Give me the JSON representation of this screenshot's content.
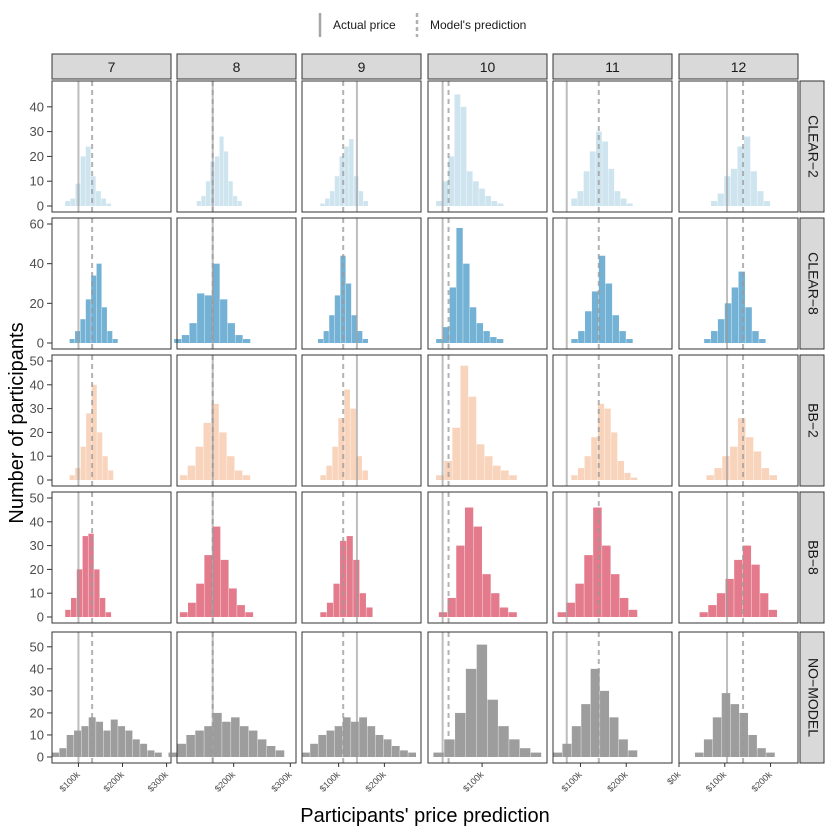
{
  "legend": {
    "actual_label": "Actual price",
    "model_label": "Model's prediction"
  },
  "chart_data": {
    "type": "histogram-facet",
    "xlabel": "Participants' price prediction",
    "ylabel": "Number of participants",
    "columns": [
      "7",
      "8",
      "9",
      "10",
      "11",
      "12"
    ],
    "rows": [
      {
        "name": "CLEAR−2",
        "color": "#c6dfec",
        "yticks": [
          0,
          10,
          20,
          30,
          40
        ],
        "ymax": 48
      },
      {
        "name": "CLEAR−8",
        "color": "#5aa3ce",
        "yticks": [
          0,
          20,
          40,
          60
        ],
        "ymax": 60
      },
      {
        "name": "BB−2",
        "color": "#f8cdb2",
        "yticks": [
          0,
          10,
          20,
          30,
          40,
          50
        ],
        "ymax": 50
      },
      {
        "name": "BB−8",
        "color": "#df6479",
        "yticks": [
          0,
          10,
          20,
          30,
          40,
          50
        ],
        "ymax": 50
      },
      {
        "name": "NO−MODEL",
        "color": "#8c8c8c",
        "yticks": [
          0,
          10,
          20,
          30,
          40,
          50
        ],
        "ymax": 54
      }
    ],
    "x_axes": [
      {
        "range": [
          40,
          310
        ],
        "ticks": [
          100,
          200,
          300
        ],
        "labels": [
          "$100k",
          "$200k",
          "$300k"
        ]
      },
      {
        "range": [
          100,
          310
        ],
        "ticks": [
          200,
          300
        ],
        "labels": [
          "$200k",
          "$300k"
        ]
      },
      {
        "range": [
          20,
          280
        ],
        "ticks": [
          100,
          200
        ],
        "labels": [
          "$100k",
          "$200k"
        ]
      },
      {
        "range": [
          0,
          220
        ],
        "ticks": [
          100
        ],
        "labels": [
          "$100k"
        ]
      },
      {
        "range": [
          40,
          300
        ],
        "ticks": [
          100,
          200
        ],
        "labels": [
          "$100k",
          "$200k"
        ]
      },
      {
        "range": [
          0,
          260
        ],
        "ticks": [
          0,
          100,
          200
        ],
        "labels": [
          "$0k",
          "$100k",
          "$200k"
        ]
      }
    ],
    "actual_price": [
      100,
      163,
      140,
      27,
      70,
      105
    ],
    "model_prediction": [
      131,
      163,
      110,
      38,
      140,
      140
    ],
    "histograms": [
      [
        {
          "start": 70,
          "end": 175,
          "counts": [
            2,
            3,
            9,
            20,
            24,
            12,
            6,
            3,
            1
          ]
        },
        {
          "start": 135,
          "end": 215,
          "counts": [
            2,
            4,
            10,
            18,
            20,
            28,
            22,
            10,
            4,
            2
          ]
        },
        {
          "start": 60,
          "end": 165,
          "counts": [
            1,
            3,
            6,
            12,
            20,
            24,
            27,
            12,
            6,
            2
          ]
        },
        {
          "start": 15,
          "end": 140,
          "counts": [
            2,
            10,
            20,
            45,
            40,
            14,
            10,
            7,
            4,
            2,
            1
          ]
        },
        {
          "start": 80,
          "end": 215,
          "counts": [
            3,
            6,
            14,
            22,
            30,
            26,
            15,
            6,
            3,
            1
          ]
        },
        {
          "start": 70,
          "end": 200,
          "counts": [
            2,
            5,
            12,
            15,
            24,
            28,
            14,
            6,
            2
          ]
        }
      ],
      [
        {
          "start": 80,
          "end": 190,
          "counts": [
            2,
            6,
            12,
            22,
            34,
            40,
            18,
            6,
            2
          ]
        },
        {
          "start": 95,
          "end": 230,
          "counts": [
            2,
            4,
            10,
            25,
            24,
            40,
            22,
            10,
            4,
            2
          ]
        },
        {
          "start": 55,
          "end": 165,
          "counts": [
            2,
            6,
            14,
            24,
            44,
            30,
            14,
            6,
            2
          ]
        },
        {
          "start": 15,
          "end": 140,
          "counts": [
            2,
            8,
            28,
            58,
            40,
            18,
            10,
            6,
            3,
            2
          ]
        },
        {
          "start": 80,
          "end": 215,
          "counts": [
            2,
            6,
            16,
            26,
            44,
            30,
            14,
            6,
            2
          ]
        },
        {
          "start": 55,
          "end": 190,
          "counts": [
            2,
            6,
            12,
            20,
            28,
            36,
            18,
            6,
            2
          ]
        }
      ],
      [
        {
          "start": 80,
          "end": 180,
          "counts": [
            2,
            5,
            14,
            28,
            40,
            20,
            10,
            4
          ]
        },
        {
          "start": 105,
          "end": 230,
          "counts": [
            2,
            6,
            14,
            24,
            32,
            20,
            10,
            4,
            2
          ]
        },
        {
          "start": 60,
          "end": 165,
          "counts": [
            2,
            6,
            14,
            26,
            38,
            30,
            10,
            4
          ]
        },
        {
          "start": 15,
          "end": 165,
          "counts": [
            2,
            8,
            22,
            48,
            35,
            15,
            10,
            6,
            4,
            2
          ]
        },
        {
          "start": 80,
          "end": 225,
          "counts": [
            2,
            5,
            10,
            18,
            32,
            30,
            20,
            8,
            3,
            1
          ]
        },
        {
          "start": 60,
          "end": 215,
          "counts": [
            2,
            5,
            10,
            14,
            26,
            18,
            12,
            5,
            2
          ]
        }
      ],
      [
        {
          "start": 70,
          "end": 175,
          "counts": [
            3,
            8,
            20,
            34,
            35,
            20,
            8,
            2
          ]
        },
        {
          "start": 105,
          "end": 235,
          "counts": [
            2,
            6,
            14,
            26,
            38,
            24,
            12,
            5,
            2
          ]
        },
        {
          "start": 60,
          "end": 175,
          "counts": [
            2,
            6,
            14,
            32,
            34,
            24,
            10,
            4
          ]
        },
        {
          "start": 20,
          "end": 165,
          "counts": [
            2,
            8,
            30,
            46,
            38,
            18,
            10,
            4,
            2
          ]
        },
        {
          "start": 50,
          "end": 225,
          "counts": [
            2,
            6,
            14,
            26,
            46,
            30,
            18,
            8,
            3
          ]
        },
        {
          "start": 45,
          "end": 215,
          "counts": [
            2,
            5,
            10,
            16,
            24,
            30,
            22,
            10,
            3
          ]
        }
      ],
      [
        {
          "start": 40,
          "end": 290,
          "counts": [
            2,
            4,
            10,
            12,
            14,
            18,
            16,
            12,
            17,
            14,
            12,
            8,
            6,
            3,
            2
          ]
        },
        {
          "start": 85,
          "end": 290,
          "counts": [
            2,
            6,
            10,
            12,
            14,
            20,
            16,
            18,
            14,
            12,
            8,
            5,
            3
          ]
        },
        {
          "start": 20,
          "end": 270,
          "counts": [
            2,
            6,
            10,
            12,
            14,
            18,
            16,
            18,
            14,
            10,
            8,
            5,
            3,
            2
          ]
        },
        {
          "start": 10,
          "end": 210,
          "counts": [
            2,
            8,
            20,
            40,
            51,
            26,
            14,
            8,
            4,
            2
          ]
        },
        {
          "start": 40,
          "end": 225,
          "counts": [
            2,
            6,
            14,
            24,
            40,
            30,
            18,
            8,
            3
          ]
        },
        {
          "start": 35,
          "end": 210,
          "counts": [
            2,
            8,
            18,
            29,
            24,
            20,
            10,
            4,
            2
          ]
        }
      ]
    ]
  }
}
